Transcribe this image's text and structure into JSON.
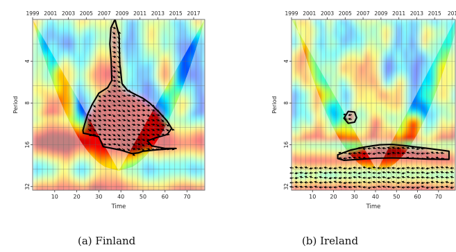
{
  "chart_data": [
    {
      "type": "heatmap",
      "subtype": "wavelet-coherence",
      "caption": "(a) Finland",
      "xlabel": "Time",
      "ylabel": "Period",
      "xlim": [
        0,
        78
      ],
      "x_ticks": [
        10,
        20,
        30,
        40,
        50,
        60,
        70
      ],
      "top_axis_years": [
        "1999",
        "2001",
        "2003",
        "2005",
        "2007",
        "2009",
        "2011",
        "2013",
        "2015",
        "2017"
      ],
      "y_ticks": [
        "4",
        "8",
        "16",
        "32"
      ],
      "y_tick_values": [
        4,
        8,
        16,
        32
      ],
      "ylim_period": [
        2,
        34
      ],
      "y_scale": "log2-reversed",
      "grid": true,
      "colormap": "jet",
      "significant_region_contour": {
        "upper": [
          [
            37.3,
            2
          ],
          [
            35.5,
            2.3
          ],
          [
            35,
            3
          ],
          [
            35.6,
            4
          ],
          [
            35.9,
            5.5
          ],
          [
            34,
            6.2
          ],
          [
            30,
            6.8
          ],
          [
            27,
            8.2
          ],
          [
            25,
            9.6
          ],
          [
            23.7,
            11.2
          ],
          [
            22.8,
            12.6
          ],
          [
            23,
            13.2
          ],
          [
            26,
            13.5
          ],
          [
            30,
            14
          ],
          [
            32,
            16.5
          ],
          [
            40,
            17.5
          ],
          [
            45,
            18.5
          ],
          [
            48,
            18.3
          ],
          [
            50,
            17.8
          ],
          [
            56,
            17.4
          ],
          [
            65,
            17
          ]
        ],
        "lower": [
          [
            37.3,
            2
          ],
          [
            39.2,
            2.6
          ],
          [
            39.5,
            4.2
          ],
          [
            40.5,
            5.8
          ],
          [
            43,
            6.5
          ],
          [
            47,
            7
          ],
          [
            50,
            7.4
          ],
          [
            53,
            8
          ],
          [
            57,
            9.2
          ],
          [
            61,
            10.8
          ],
          [
            63,
            12.2
          ],
          [
            61,
            13.5
          ],
          [
            56,
            14.2
          ],
          [
            52,
            15
          ],
          [
            54,
            16.3
          ],
          [
            60,
            17
          ],
          [
            65,
            17
          ]
        ]
      },
      "phase_arrow_dominant_direction": "lower-right",
      "notes": [
        "cone of influence shown as pale shading outside a parabolic region"
      ]
    },
    {
      "type": "heatmap",
      "subtype": "wavelet-coherence",
      "caption": "(b) Ireland",
      "xlabel": "Time",
      "ylabel": "Period",
      "xlim": [
        0,
        78
      ],
      "x_ticks": [
        10,
        20,
        30,
        40,
        50,
        60,
        70
      ],
      "top_axis_years": [
        "1999",
        "2001",
        "2003",
        "2005",
        "2007",
        "2009",
        "2011",
        "2013",
        "2015",
        "201"
      ],
      "y_ticks": [
        "4",
        "8",
        "16",
        "32"
      ],
      "y_tick_values": [
        4,
        8,
        16,
        32
      ],
      "ylim_period": [
        2,
        34
      ],
      "y_scale": "log2-reversed",
      "grid": true,
      "colormap": "jet",
      "significant_region_contours": [
        [
          [
            25,
            10.3
          ],
          [
            27,
            9.2
          ],
          [
            30,
            9.3
          ],
          [
            31,
            10.2
          ],
          [
            30,
            11
          ],
          [
            27,
            11.2
          ]
        ],
        [
          [
            22,
            18.9
          ],
          [
            28,
            17.5
          ],
          [
            35,
            16.6
          ],
          [
            42,
            16
          ],
          [
            48,
            15.9
          ],
          [
            55,
            16.3
          ],
          [
            65,
            17
          ],
          [
            75,
            17.8
          ],
          [
            75,
            20.4
          ],
          [
            65,
            20.3
          ],
          [
            55,
            20
          ],
          [
            48,
            19.9
          ],
          [
            40,
            20
          ],
          [
            32,
            20.4
          ],
          [
            25,
            20.7
          ],
          [
            22,
            20.1
          ]
        ]
      ],
      "phase_arrow_dominant_direction": "left",
      "notes": [
        "low-frequency bands (period > 16) shaded; cone of influence parabolic"
      ]
    }
  ]
}
